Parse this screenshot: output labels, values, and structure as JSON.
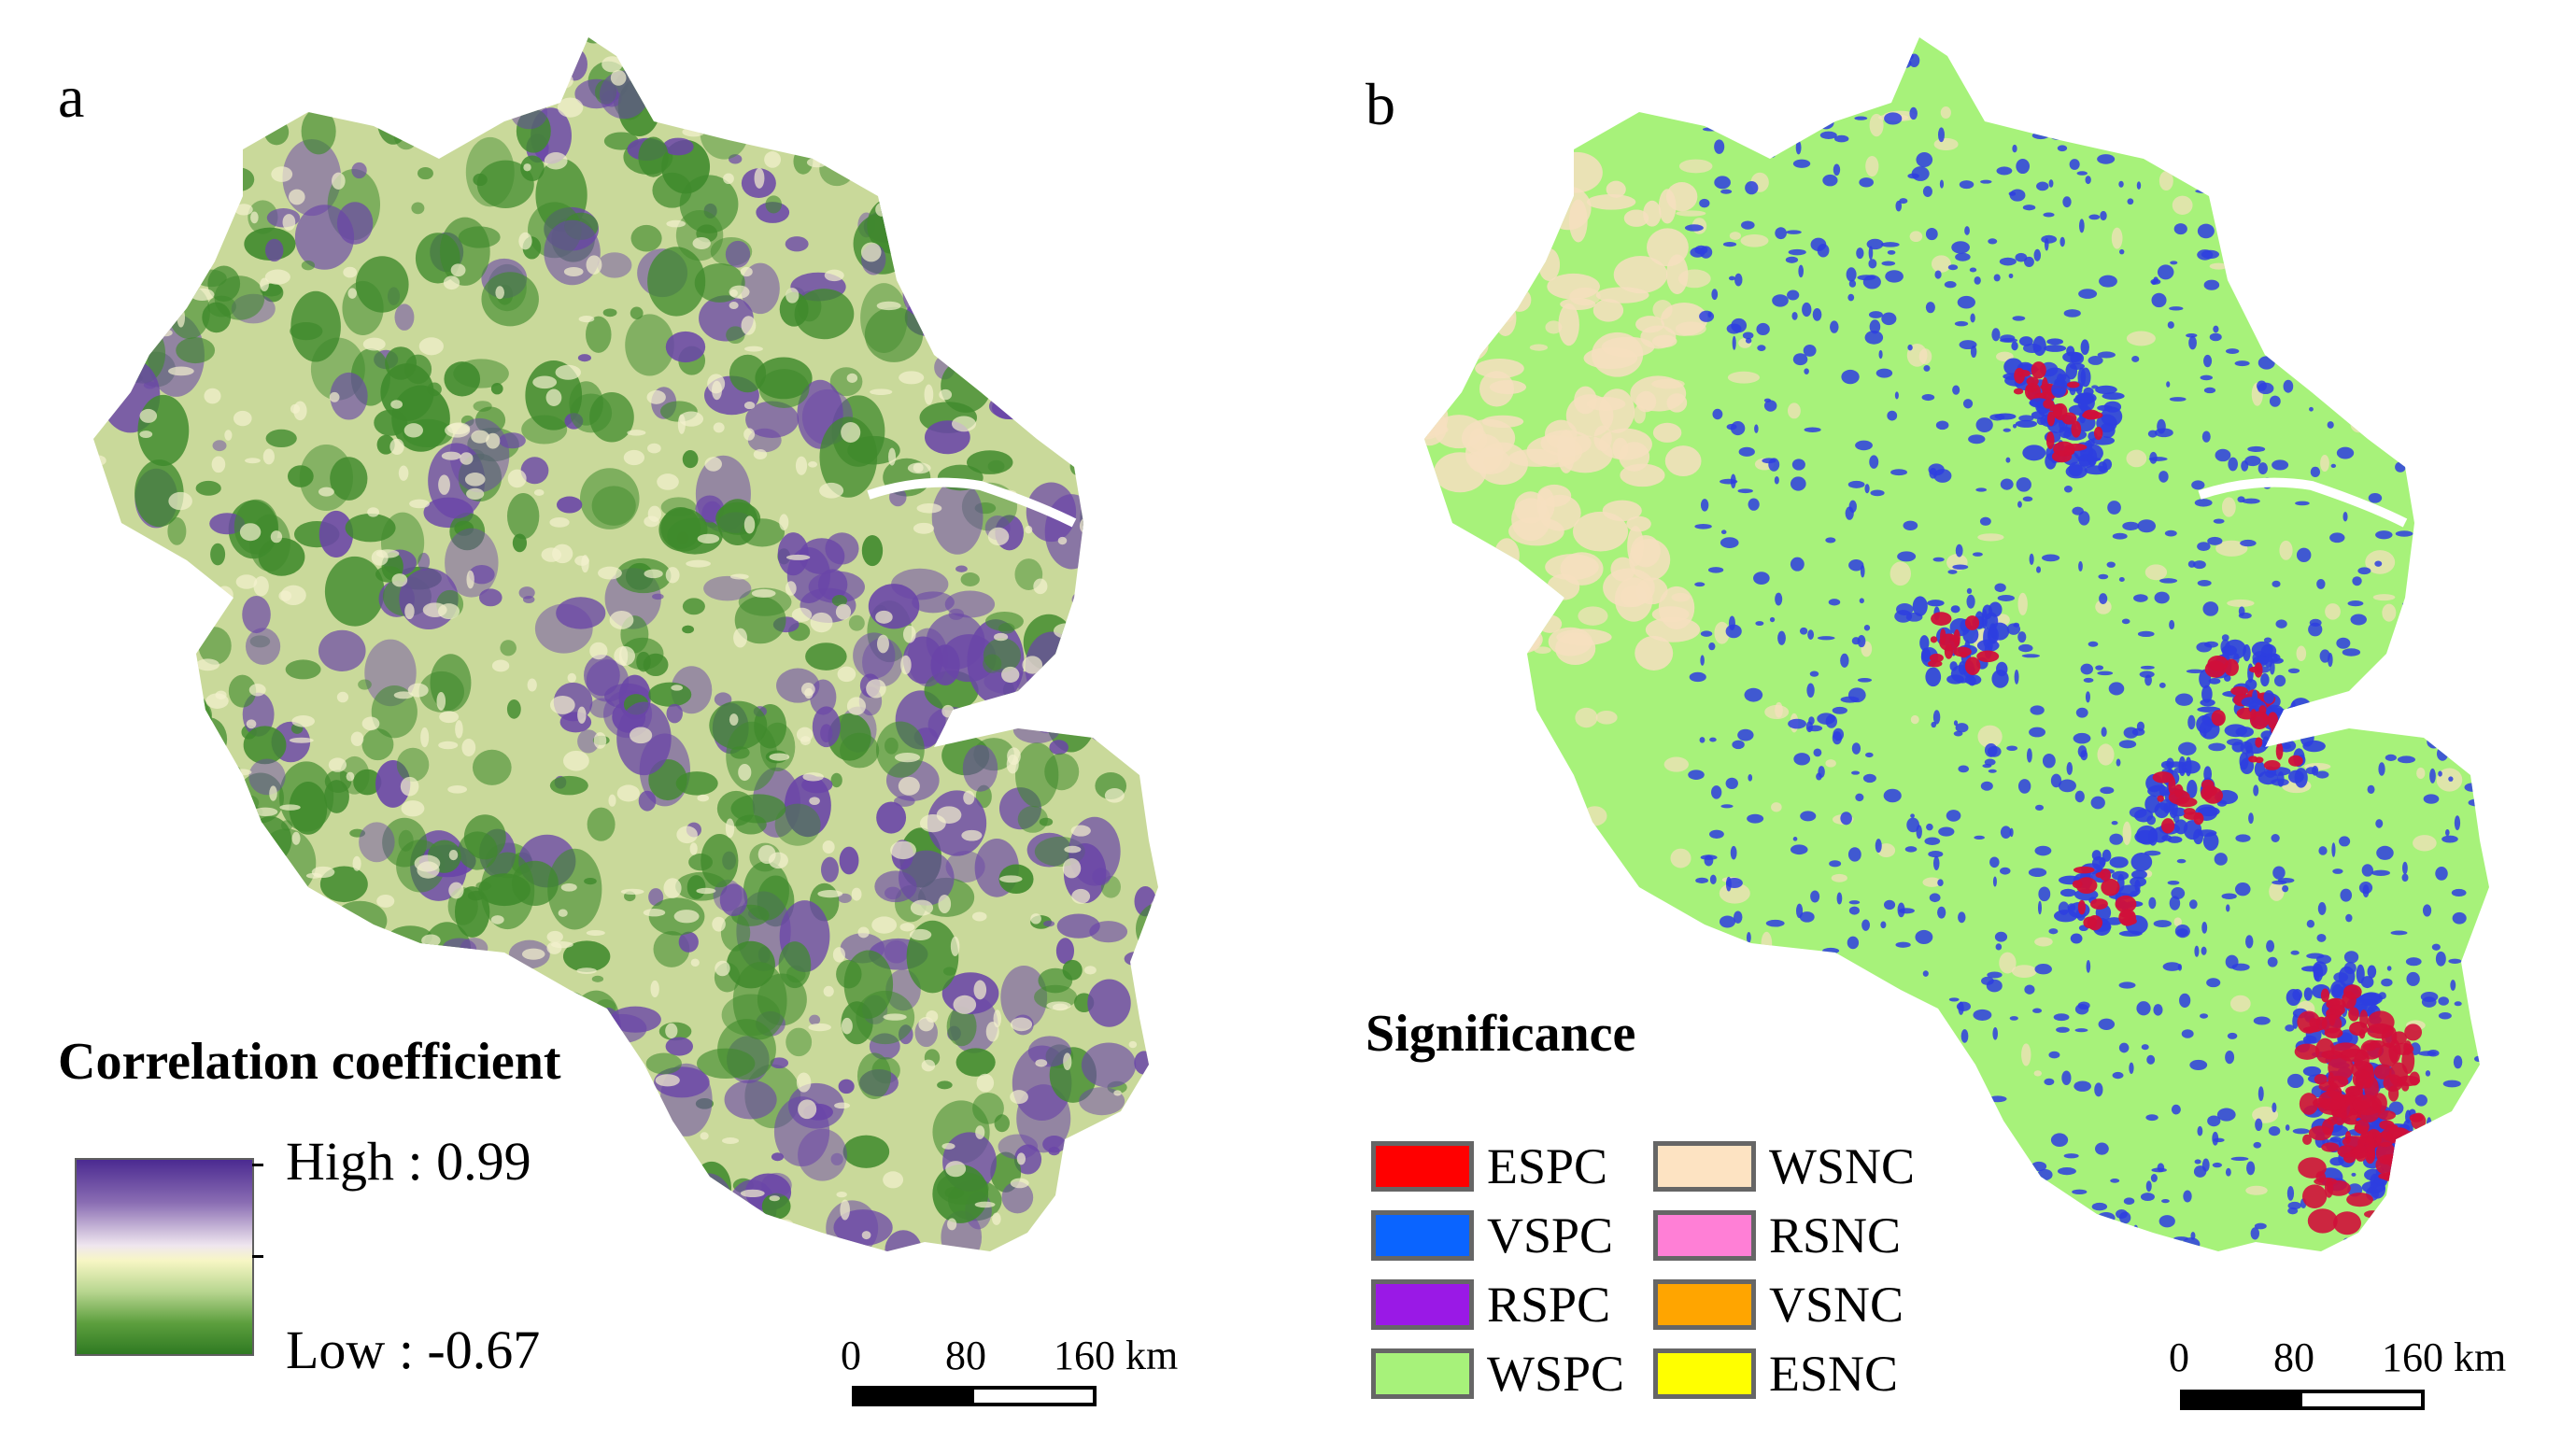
{
  "panel_a": {
    "letter": "a",
    "legend_title": "Correlation coefficient",
    "high_label": "High : 0.99",
    "low_label": "Low : -0.67",
    "ramp_colors": [
      "#4b2a91",
      "#efe6ef",
      "#f7f6c4",
      "#2f7a22"
    ]
  },
  "panel_b": {
    "letter": "b",
    "legend_title": "Significance",
    "classes": [
      {
        "code": "ESPC",
        "color": "#ff0000"
      },
      {
        "code": "VSPC",
        "color": "#0a64ff"
      },
      {
        "code": "RSPC",
        "color": "#9a19e6"
      },
      {
        "code": "WSPC",
        "color": "#a7f27a"
      },
      {
        "code": "WSNC",
        "color": "#fde3c2"
      },
      {
        "code": "RSNC",
        "color": "#ff7fd6"
      },
      {
        "code": "VSNC",
        "color": "#ffa500"
      },
      {
        "code": "ESNC",
        "color": "#ffff00"
      }
    ]
  },
  "scalebar": {
    "labels": [
      "0",
      "80",
      "160 km"
    ]
  },
  "colors": {
    "map_a_base": "#c9d99a",
    "map_a_green": "#3f8a2c",
    "map_a_purple": "#6a45a8",
    "map_b_base": "#a7f27a",
    "map_b_wsnc": "#f6dfbf",
    "map_b_vspc": "#2e3ee0",
    "map_b_espc": "#d0103a"
  }
}
